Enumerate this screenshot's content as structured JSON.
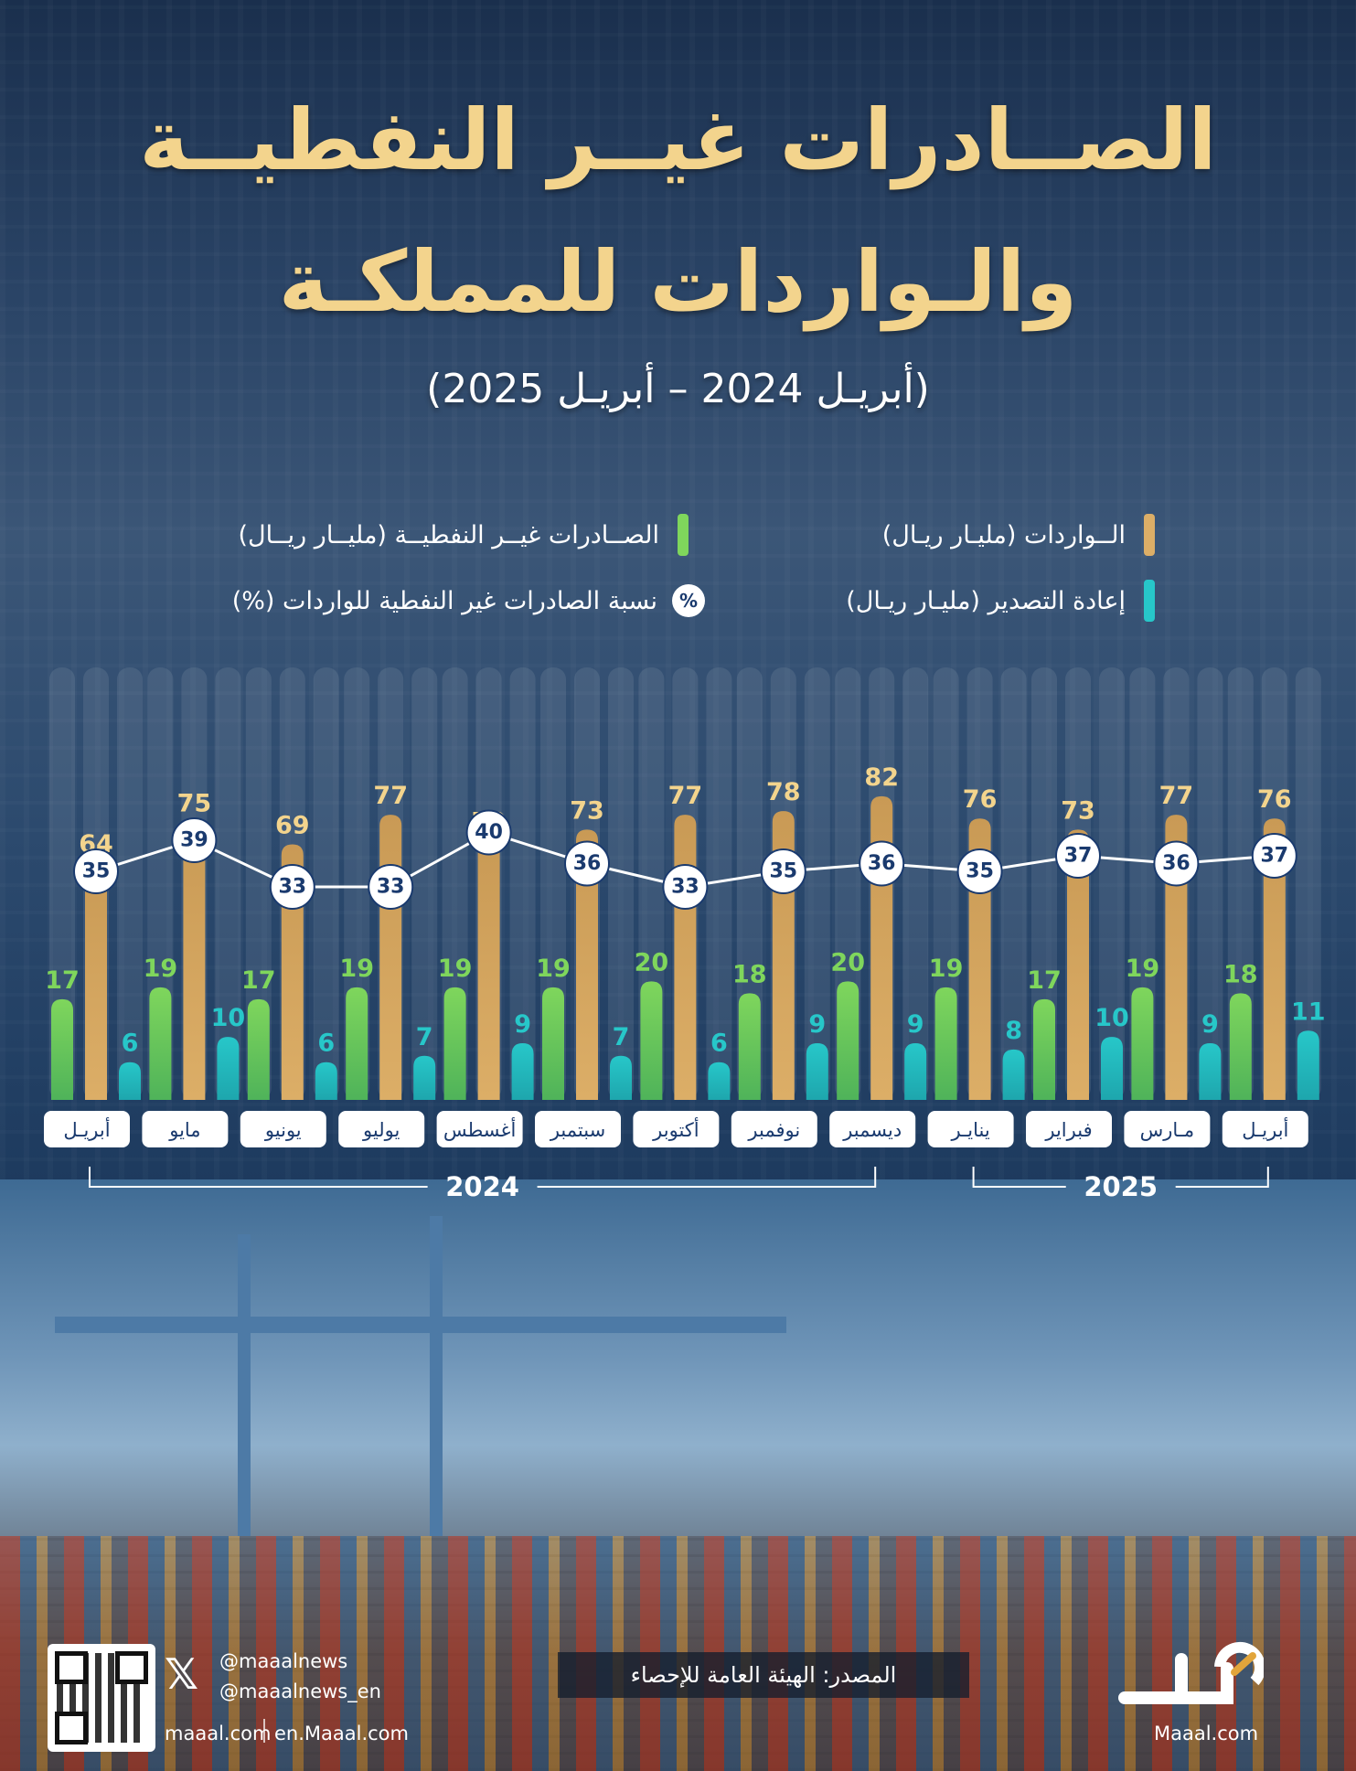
{
  "header": {
    "title_line1": "الصــادرات غيــر النفطيــة",
    "title_line2": "والـواردات للمملكـة",
    "subtitle": "(أبريـل 2024 – أبريـل 2025)"
  },
  "legend": {
    "imports": "الــواردات (مليـار ريـال)",
    "non_oil_exports": "الصــادرات غيــر النفطيــة (مليــار ريــال)",
    "reexports": "إعادة التصدير (مليـار ريـال)",
    "ratio": "نسبة الصادرات غير النفطية للواردات (%)",
    "ratio_symbol": "%"
  },
  "colors": {
    "imports": "#dcae67",
    "non_oil_exports": "#7fd65c",
    "reexports": "#27c7c9",
    "title": "#f3d48d",
    "circle_text": "#1a3a6e"
  },
  "chart_data": {
    "type": "bar",
    "title": "الصــادرات غيــر النفطيــة والـواردات للمملكـة",
    "subtitle": "(أبريـل 2024 – أبريـل 2025)",
    "categories": [
      "أبريـل",
      "مايو",
      "يونيو",
      "يوليو",
      "أغسطس",
      "سبتمبر",
      "أكتوبر",
      "نوفمبر",
      "ديسمبر",
      "ينايـر",
      "فبراير",
      "مـارس",
      "أبريـل"
    ],
    "years": [
      {
        "label": "2024",
        "from": 0,
        "to": 8
      },
      {
        "label": "2025",
        "from": 9,
        "to": 12
      }
    ],
    "series": [
      {
        "name": "الــواردات (مليـار ريـال)",
        "values": [
          64,
          75,
          69,
          77,
          70,
          73,
          77,
          78,
          82,
          76,
          73,
          77,
          76
        ]
      },
      {
        "name": "الصــادرات غيــر النفطيــة (مليــار ريــال)",
        "values": [
          17,
          19,
          17,
          19,
          19,
          19,
          20,
          18,
          20,
          19,
          17,
          19,
          18
        ]
      },
      {
        "name": "إعادة التصدير (مليـار ريـال)",
        "values": [
          6,
          10,
          6,
          7,
          9,
          7,
          6,
          9,
          9,
          8,
          10,
          9,
          11
        ]
      },
      {
        "name": "نسبة الصادرات غير النفطية للواردات (%)",
        "values": [
          35,
          39,
          33,
          33,
          40,
          36,
          33,
          35,
          36,
          35,
          37,
          36,
          37
        ]
      }
    ],
    "ylim": [
      0,
      90
    ],
    "grid": false
  },
  "footer": {
    "source": "المصدر: الهيئة العامة للإحصاء",
    "handle1": "@maaalnews",
    "handle2": "@maaalnews_en",
    "site1": "maaal.com",
    "site2": "en.Maaal.com",
    "logo_text": "Maaal.com"
  }
}
